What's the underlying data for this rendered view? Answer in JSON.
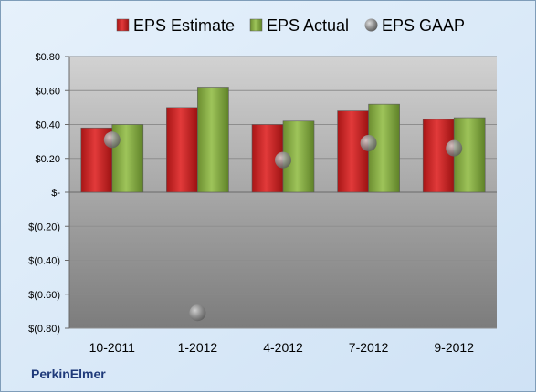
{
  "company_label": "PerkinElmer",
  "chart_data": {
    "type": "bar",
    "title": "",
    "xlabel": "",
    "ylabel": "",
    "categories": [
      "10-2011",
      "1-2012",
      "4-2012",
      "7-2012",
      "9-2012"
    ],
    "series": [
      {
        "name": "EPS Estimate",
        "kind": "bar",
        "color": "#d42a2a",
        "values": [
          0.38,
          0.5,
          0.4,
          0.48,
          0.43
        ]
      },
      {
        "name": "EPS Actual",
        "kind": "bar",
        "color": "#8cb24a",
        "values": [
          0.4,
          0.62,
          0.42,
          0.52,
          0.44
        ]
      },
      {
        "name": "EPS GAAP",
        "kind": "marker",
        "color": "#9a9a9a",
        "values": [
          0.31,
          -0.71,
          0.19,
          0.29,
          0.26
        ]
      }
    ],
    "ylim": [
      -0.8,
      0.8
    ],
    "yticks": [
      0.8,
      0.6,
      0.4,
      0.2,
      0,
      -0.2,
      -0.4,
      -0.6,
      -0.8
    ],
    "ytick_labels": [
      "$0.80",
      "$0.60",
      "$0.40",
      "$0.20",
      "$-",
      "$(0.20)",
      "$(0.40)",
      "$(0.60)",
      "$(0.80)"
    ],
    "grid": true,
    "legend_position": "top"
  }
}
